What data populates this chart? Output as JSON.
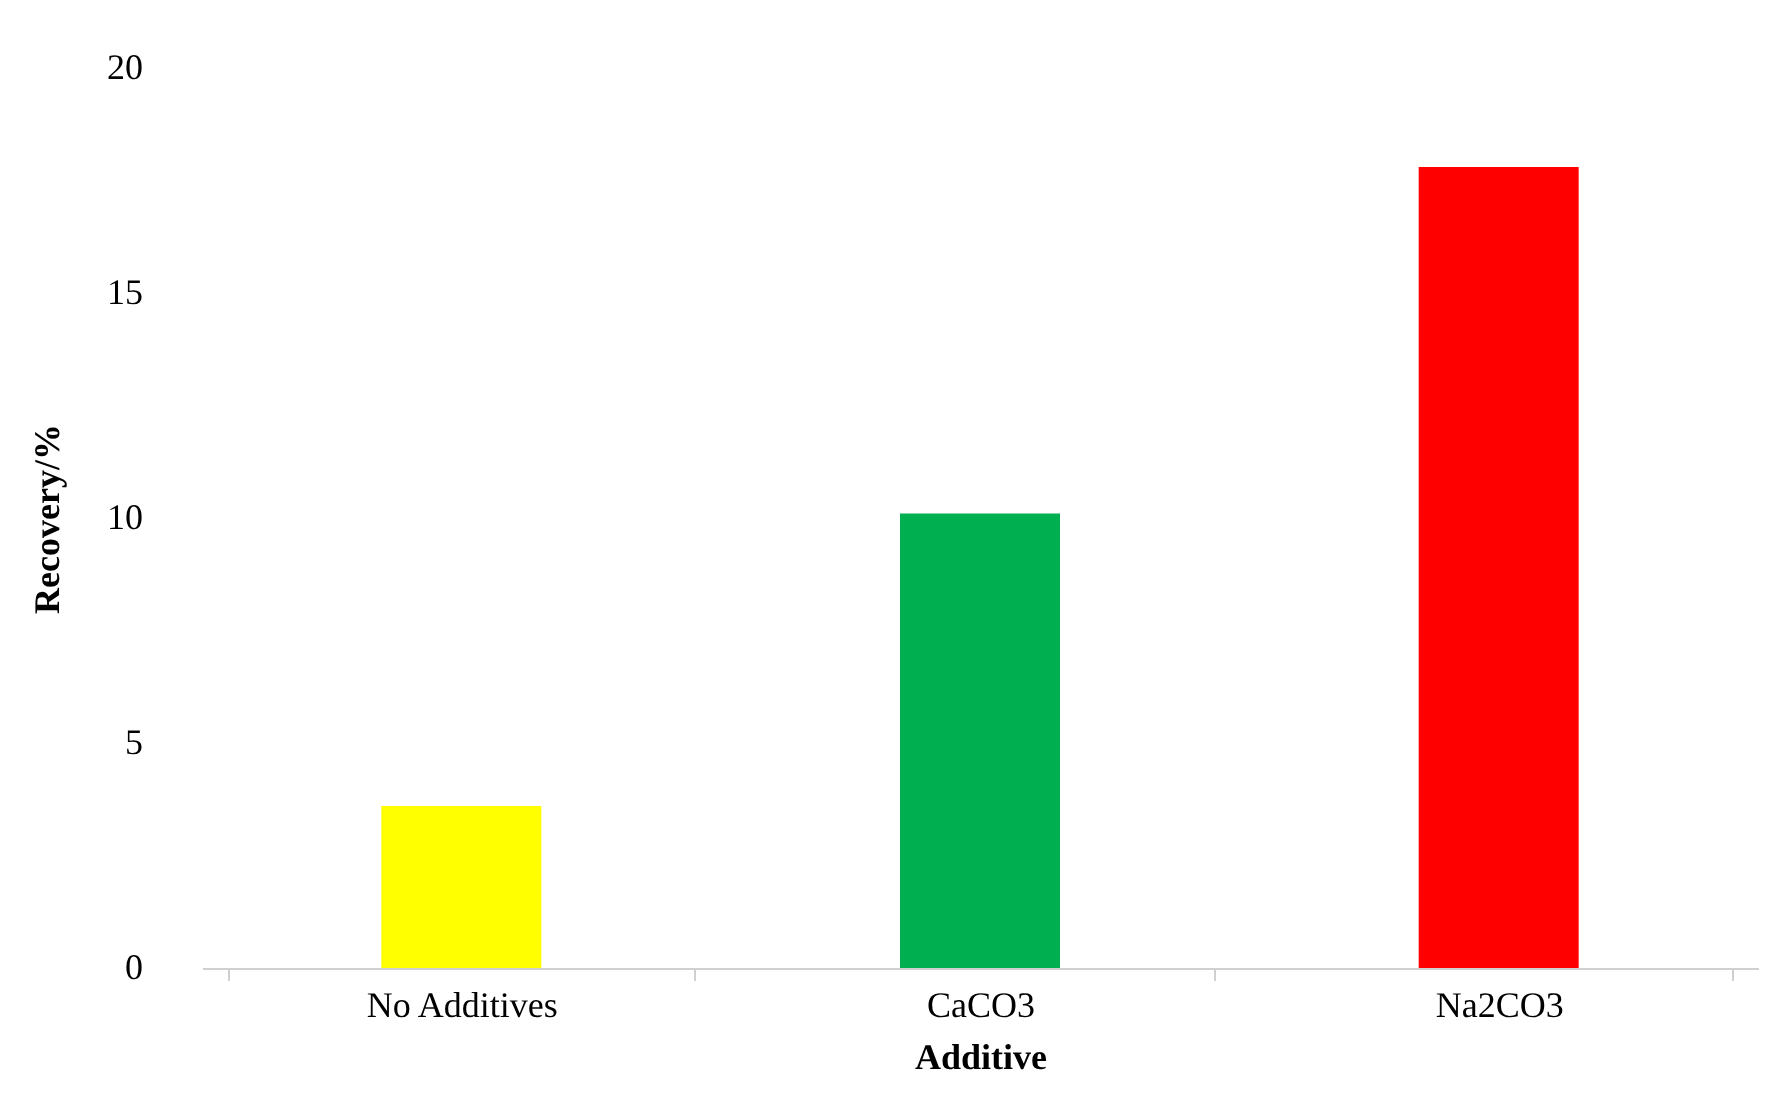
{
  "chart_data": {
    "type": "bar",
    "xlabel": "Additive",
    "ylabel": "Recovery/%",
    "categories": [
      "No Additives",
      "CaCO3",
      "Na2CO3"
    ],
    "values": [
      3.6,
      10.1,
      17.8
    ],
    "colors": [
      "#ffff00",
      "#00b050",
      "#ff0000"
    ],
    "ylim": [
      0,
      20
    ],
    "yticks": [
      0,
      5,
      10,
      15,
      20
    ],
    "grid": false
  }
}
